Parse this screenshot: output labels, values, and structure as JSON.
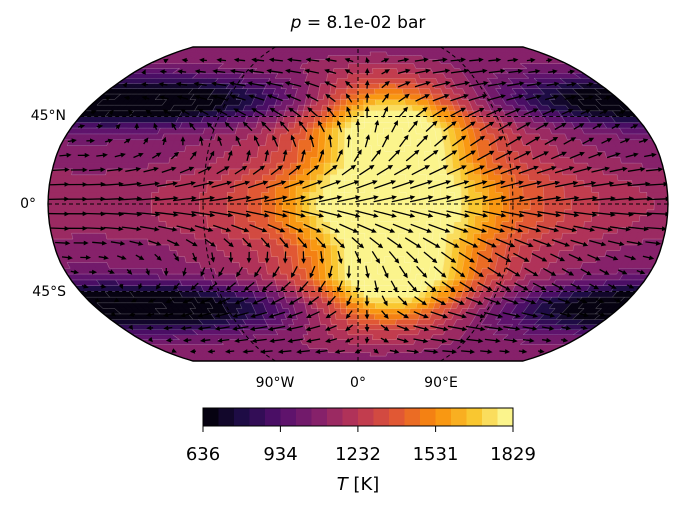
{
  "title_prefix": "p",
  "title_rest": " = 8.1e-02 bar",
  "lat_labels": [
    "45°N",
    "0°",
    "45°S"
  ],
  "lon_labels": [
    "90°W",
    "0°",
    "90°E"
  ],
  "colorbar": {
    "ticks": [
      "636",
      "934",
      "1232",
      "1531",
      "1829"
    ],
    "label_symbol": "T",
    "label_unit": " [K]"
  },
  "chart_data": {
    "type": "heatmap",
    "projection": "robinson",
    "title": "p = 8.1e-02 bar",
    "variable": "T",
    "units": "K",
    "vmin": 636,
    "vmax": 1829,
    "levels": 20,
    "colormap": "inferno",
    "x_ticks": [
      "90°W",
      "0°",
      "90°E"
    ],
    "y_ticks": [
      "45°N",
      "0°",
      "45°S"
    ],
    "overlay": "wind vector arrows",
    "hotspot": {
      "lon": [
        0,
        90
      ],
      "lat_lobes": [
        "north",
        "south"
      ],
      "peak_T": 1829
    },
    "coldest": {
      "lat": [
        "high north",
        "high south"
      ],
      "lon": "night side",
      "T": 636
    }
  }
}
